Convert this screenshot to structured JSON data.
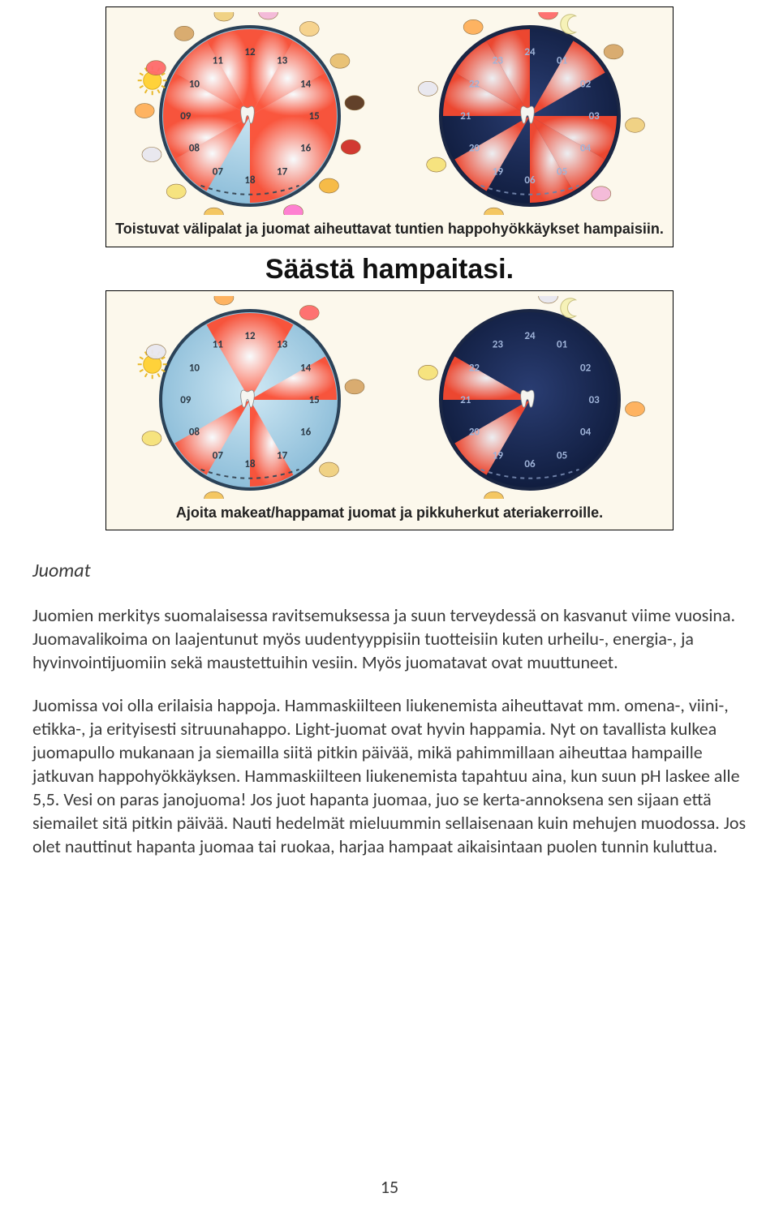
{
  "infographic": {
    "bg_color": "#fcf8ec",
    "border_color": "#000000",
    "caption1": "Toistuvat välipalat ja juomat aiheuttavat tuntien happohyökkäykset hampaisiin.",
    "heading": "Säästä hampaitasi.",
    "caption2": "Ajoita makeat/happamat juomat ja pikkuherkut ateriakerroille.",
    "clock_day": {
      "type": "clock-diagram",
      "radius": 110,
      "bg_gradient": [
        "#cfe8f4",
        "#86b9d6"
      ],
      "ring_color": "#2b4258",
      "number_color": "#2b3a46",
      "sector_inner": "#ffffff",
      "sector_outer": "#ff4a2e",
      "dash_color": "#3a4a58",
      "sun_color": "#ffd23a",
      "hours": [
        "07",
        "08",
        "09",
        "10",
        "11",
        "12",
        "13",
        "14",
        "15",
        "16",
        "17",
        "18"
      ],
      "sectors_bad": [
        {
          "start": "07",
          "end": "08"
        },
        {
          "start": "08",
          "end": "09"
        },
        {
          "start": "09",
          "end": "10"
        },
        {
          "start": "10",
          "end": "11"
        },
        {
          "start": "11",
          "end": "12"
        },
        {
          "start": "12",
          "end": "13"
        },
        {
          "start": "13",
          "end": "14"
        },
        {
          "start": "14",
          "end": "15"
        },
        {
          "start": "15",
          "end": "18"
        }
      ],
      "sectors_good": [
        {
          "start": "07",
          "end": "08"
        },
        {
          "start": "11",
          "end": "13"
        },
        {
          "start": "14",
          "end": "15"
        },
        {
          "start": "17",
          "end": "18"
        }
      ]
    },
    "clock_night": {
      "type": "clock-diagram",
      "radius": 110,
      "bg_gradient": [
        "#2a3d72",
        "#0e1a3a"
      ],
      "ring_color": "#1a2644",
      "number_color": "#9fb3d8",
      "sector_inner": "#ffffff",
      "sector_outer": "#ff4a2e",
      "dash_color": "#6d7fa6",
      "moon_color": "#f6f2b8",
      "hours": [
        "19",
        "20",
        "21",
        "22",
        "23",
        "24",
        "01",
        "02",
        "03",
        "04",
        "05",
        "06"
      ],
      "sectors_bad": [
        {
          "start": "19",
          "end": "20"
        },
        {
          "start": "21",
          "end": "22"
        },
        {
          "start": "22",
          "end": "23"
        },
        {
          "start": "23",
          "end": "24"
        },
        {
          "start": "01",
          "end": "02"
        },
        {
          "start": "03",
          "end": "04"
        },
        {
          "start": "04",
          "end": "05"
        },
        {
          "start": "05",
          "end": "06"
        }
      ],
      "sectors_good": [
        {
          "start": "19",
          "end": "20"
        },
        {
          "start": "21",
          "end": "22"
        }
      ]
    },
    "food_icons": [
      "cereal-bowl",
      "cheese",
      "milk-glass",
      "crisps",
      "candy",
      "biscuits",
      "chips",
      "ice-cream",
      "soup",
      "bread",
      "chocolate-bar",
      "cola-can",
      "fruit",
      "wrapped-candy"
    ]
  },
  "article": {
    "heading": "Juomat",
    "p1": "Juomien merkitys suomalaisessa ravitsemuksessa ja suun terveydessä on kasvanut viime vuosina. Juomavalikoima on laajentunut myös uudentyyppisiin tuotteisiin kuten urheilu-, energia-, ja hyvinvointijuomiin sekä maustettuihin vesiin. Myös juomatavat ovat muuttuneet.",
    "p2": "Juomissa voi olla erilaisia happoja. Hammaskiilteen liukenemista aiheuttavat mm. omena-, viini-, etikka-, ja erityisesti sitruunahappo. Light-juomat ovat hyvin happamia. Nyt on tavallista kulkea juomapullo mukanaan ja siemailla siitä pitkin päivää, mikä pahimmillaan aiheuttaa hampaille jatkuvan happohyökkäyksen. Hammaskiilteen liukenemista tapahtuu aina, kun suun pH laskee alle 5,5.  Vesi on paras janojuoma! Jos juot hapanta juomaa, juo se kerta-annoksena sen sijaan että siemailet sitä pitkin päivää. Nauti hedelmät mieluummin sellaisenaan kuin mehujen muodossa. Jos olet nauttinut hapanta juomaa tai ruokaa, harjaa hampaat aikaisintaan puolen tunnin kuluttua."
  },
  "page_number": "15"
}
